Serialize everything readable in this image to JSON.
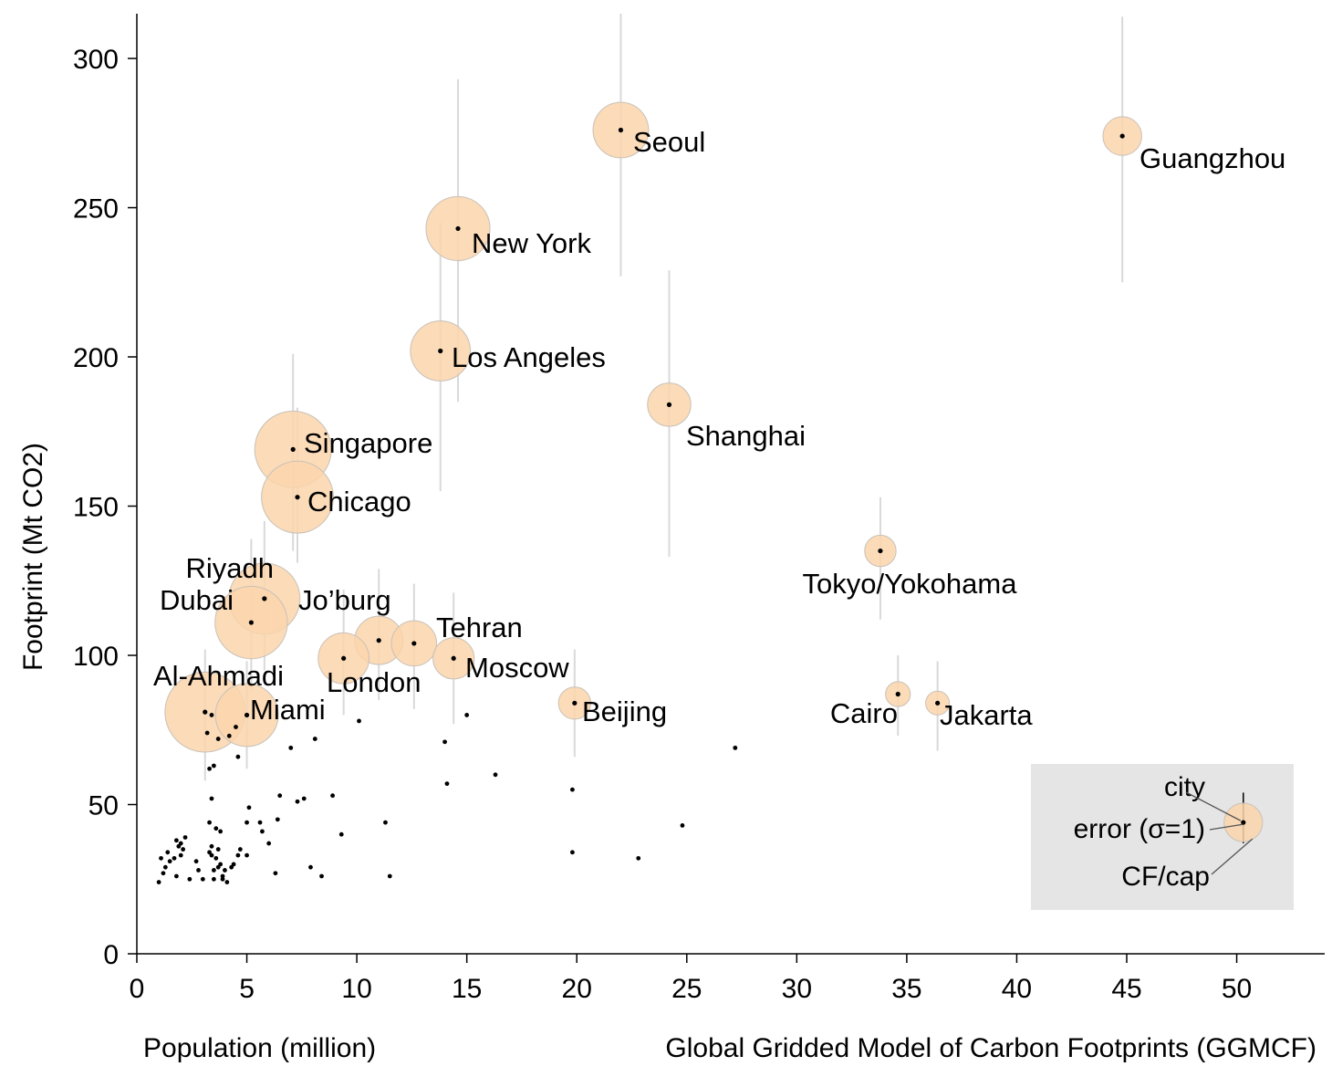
{
  "chart_data": {
    "type": "scatter",
    "xlabel": "Population (million)",
    "ylabel": "Footprint (Mt CO2)",
    "source": "Global Gridded Model of Carbon Footprints (GGMCF)",
    "xlim": [
      0,
      54
    ],
    "ylim": [
      0,
      315
    ],
    "x_ticks": [
      0,
      5,
      10,
      15,
      20,
      25,
      30,
      35,
      40,
      45,
      50
    ],
    "y_ticks": [
      0,
      50,
      100,
      150,
      200,
      250,
      300
    ],
    "grid": false,
    "colors": {
      "bubble_fill": "#fad5ac",
      "bubble_stroke": "#c9c1b8",
      "error_bar": "#d9d9d9",
      "dot": "#000000",
      "legend_bg": "#e5e5e5"
    },
    "labeled_cities": [
      {
        "name": "Guangzhou",
        "x": 44.8,
        "y": 274,
        "cf_per_cap": 6.1,
        "err_low": 225,
        "err_high": 314,
        "label_pos": "below-right"
      },
      {
        "name": "Seoul",
        "x": 22.0,
        "y": 276,
        "cf_per_cap": 12.5,
        "err_low": 227,
        "err_high": 315,
        "label_pos": "below-right"
      },
      {
        "name": "New York",
        "x": 14.6,
        "y": 243,
        "cf_per_cap": 16.6,
        "err_low": 185,
        "err_high": 293,
        "label_pos": "below-right"
      },
      {
        "name": "Los Angeles",
        "x": 13.8,
        "y": 202,
        "cf_per_cap": 14.6,
        "err_low": 155,
        "err_high": 245,
        "label_pos": "right"
      },
      {
        "name": "Shanghai",
        "x": 24.2,
        "y": 184,
        "cf_per_cap": 7.6,
        "err_low": 133,
        "err_high": 229,
        "label_pos": "below-right"
      },
      {
        "name": "Singapore",
        "x": 7.1,
        "y": 169,
        "cf_per_cap": 23.8,
        "err_low": 135,
        "err_high": 201,
        "label_pos": "right"
      },
      {
        "name": "Chicago",
        "x": 7.3,
        "y": 153,
        "cf_per_cap": 21.0,
        "err_low": 131,
        "err_high": 183,
        "label_pos": "right"
      },
      {
        "name": "Tokyo/Yokohama",
        "x": 33.8,
        "y": 135,
        "cf_per_cap": 4.0,
        "err_low": 112,
        "err_high": 153,
        "label_pos": "below"
      },
      {
        "name": "Riyadh",
        "x": 5.8,
        "y": 119,
        "cf_per_cap": 20.5,
        "err_low": 95,
        "err_high": 145,
        "label_pos": "above-left"
      },
      {
        "name": "Dubai",
        "x": 5.2,
        "y": 111,
        "cf_per_cap": 21.3,
        "err_low": 88,
        "err_high": 139,
        "label_pos": "left"
      },
      {
        "name": "Jo’burg",
        "x": 11.0,
        "y": 105,
        "cf_per_cap": 9.5,
        "err_low": 85,
        "err_high": 129,
        "label_pos": "above-left"
      },
      {
        "name": "Tehran",
        "x": 12.6,
        "y": 104,
        "cf_per_cap": 8.3,
        "err_low": 82,
        "err_high": 124,
        "label_pos": "above-right"
      },
      {
        "name": "London",
        "x": 9.4,
        "y": 99,
        "cf_per_cap": 10.5,
        "err_low": 80,
        "err_high": 122,
        "label_pos": "below-right"
      },
      {
        "name": "Moscow",
        "x": 14.4,
        "y": 99,
        "cf_per_cap": 6.9,
        "err_low": 77,
        "err_high": 121,
        "label_pos": "below-right"
      },
      {
        "name": "Al-Ahmadi",
        "x": 3.1,
        "y": 81,
        "cf_per_cap": 26.0,
        "err_low": 58,
        "err_high": 102,
        "label_pos": "above"
      },
      {
        "name": "Miami",
        "x": 5.0,
        "y": 80,
        "cf_per_cap": 16.0,
        "err_low": 62,
        "err_high": 98,
        "label_pos": "right"
      },
      {
        "name": "Beijing",
        "x": 19.9,
        "y": 84,
        "cf_per_cap": 4.2,
        "err_low": 66,
        "err_high": 102,
        "label_pos": "right"
      },
      {
        "name": "Cairo",
        "x": 34.6,
        "y": 87,
        "cf_per_cap": 2.5,
        "err_low": 73,
        "err_high": 100,
        "label_pos": "below-left"
      },
      {
        "name": "Jakarta",
        "x": 36.4,
        "y": 84,
        "cf_per_cap": 2.3,
        "err_low": 68,
        "err_high": 98,
        "label_pos": "below-right"
      }
    ],
    "other_cities": [
      [
        3.4,
        80
      ],
      [
        3.2,
        74
      ],
      [
        3.7,
        72
      ],
      [
        4.2,
        73
      ],
      [
        4.5,
        76
      ],
      [
        4.6,
        66
      ],
      [
        3.5,
        63
      ],
      [
        3.3,
        62
      ],
      [
        7.0,
        69
      ],
      [
        8.1,
        72
      ],
      [
        10.1,
        78
      ],
      [
        15.0,
        80
      ],
      [
        14.0,
        71
      ],
      [
        14.1,
        57
      ],
      [
        16.3,
        60
      ],
      [
        19.8,
        55
      ],
      [
        27.2,
        69
      ],
      [
        24.8,
        43
      ],
      [
        22.8,
        32
      ],
      [
        19.8,
        34
      ],
      [
        11.5,
        26
      ],
      [
        11.3,
        44
      ],
      [
        9.3,
        40
      ],
      [
        8.9,
        53
      ],
      [
        8.4,
        26
      ],
      [
        7.9,
        29
      ],
      [
        7.6,
        52
      ],
      [
        7.3,
        51
      ],
      [
        6.5,
        53
      ],
      [
        6.4,
        45
      ],
      [
        6.3,
        27
      ],
      [
        6.0,
        37
      ],
      [
        5.7,
        41
      ],
      [
        5.6,
        44
      ],
      [
        5.1,
        49
      ],
      [
        5.0,
        44
      ],
      [
        5.0,
        33
      ],
      [
        4.7,
        35
      ],
      [
        4.6,
        33
      ],
      [
        4.4,
        30
      ],
      [
        4.3,
        29
      ],
      [
        4.1,
        24
      ],
      [
        3.9,
        26
      ],
      [
        3.8,
        30
      ],
      [
        3.7,
        35
      ],
      [
        3.6,
        32
      ],
      [
        3.5,
        28
      ],
      [
        3.5,
        25
      ],
      [
        3.4,
        36
      ],
      [
        3.3,
        34
      ],
      [
        3.3,
        44
      ],
      [
        3.4,
        52
      ],
      [
        3.6,
        42
      ],
      [
        3.9,
        25
      ],
      [
        3.0,
        25
      ],
      [
        2.8,
        28
      ],
      [
        2.7,
        31
      ],
      [
        2.4,
        25
      ],
      [
        2.2,
        39
      ],
      [
        2.1,
        35
      ],
      [
        2.0,
        33
      ],
      [
        1.9,
        36
      ],
      [
        1.8,
        26
      ],
      [
        1.8,
        38
      ],
      [
        1.7,
        32
      ],
      [
        1.5,
        31
      ],
      [
        1.4,
        34
      ],
      [
        1.3,
        29
      ],
      [
        1.2,
        27
      ],
      [
        1.1,
        32
      ],
      [
        1.0,
        24
      ],
      [
        2.0,
        37
      ],
      [
        3.4,
        33
      ],
      [
        3.7,
        29
      ],
      [
        4.0,
        28
      ],
      [
        3.8,
        41
      ]
    ],
    "legend": {
      "labels": [
        "city",
        "error (σ=1)",
        "CF/cap"
      ],
      "sample": {
        "x": 50.3,
        "y": 44,
        "err_low": 37,
        "err_high": 54,
        "cf_per_cap": 6.0
      }
    }
  }
}
